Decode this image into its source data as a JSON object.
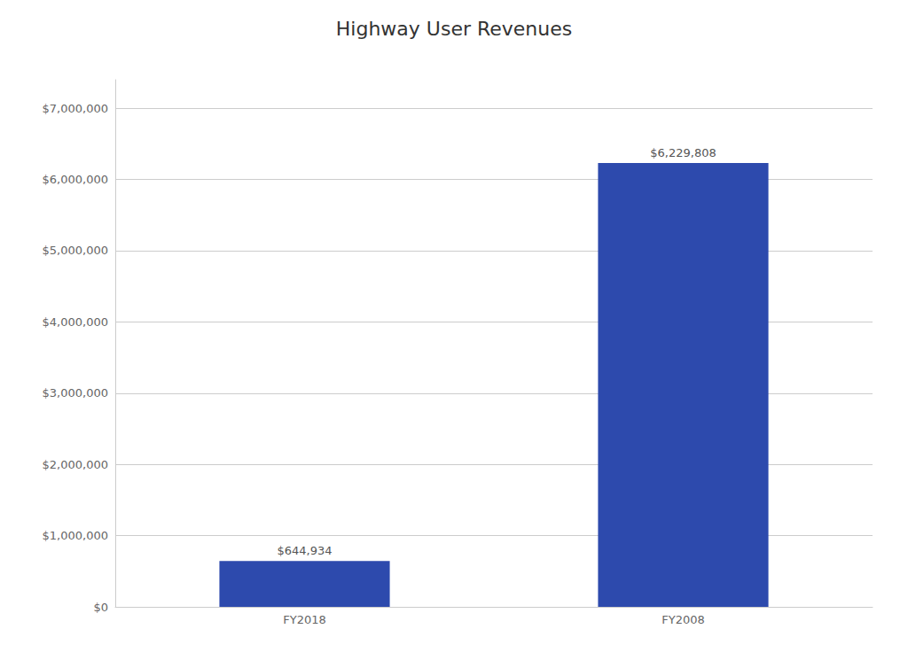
{
  "chart_data": {
    "type": "bar",
    "title": "Highway User Revenues",
    "categories": [
      "FY2018",
      "FY2008"
    ],
    "values": [
      644934,
      6229808
    ],
    "value_labels": [
      "$644,934",
      "$6,229,808"
    ],
    "data_labels": true,
    "color": "#2d4aad",
    "ylim": [
      0,
      7400000
    ],
    "yticks": [
      {
        "value": 0,
        "label": "$0"
      },
      {
        "value": 1000000,
        "label": "$1,000,000"
      },
      {
        "value": 2000000,
        "label": "$2,000,000"
      },
      {
        "value": 3000000,
        "label": "$3,000,000"
      },
      {
        "value": 4000000,
        "label": "$4,000,000"
      },
      {
        "value": 5000000,
        "label": "$5,000,000"
      },
      {
        "value": 6000000,
        "label": "$6,000,000"
      },
      {
        "value": 7000000,
        "label": "$7,000,000"
      }
    ],
    "grid": true
  }
}
